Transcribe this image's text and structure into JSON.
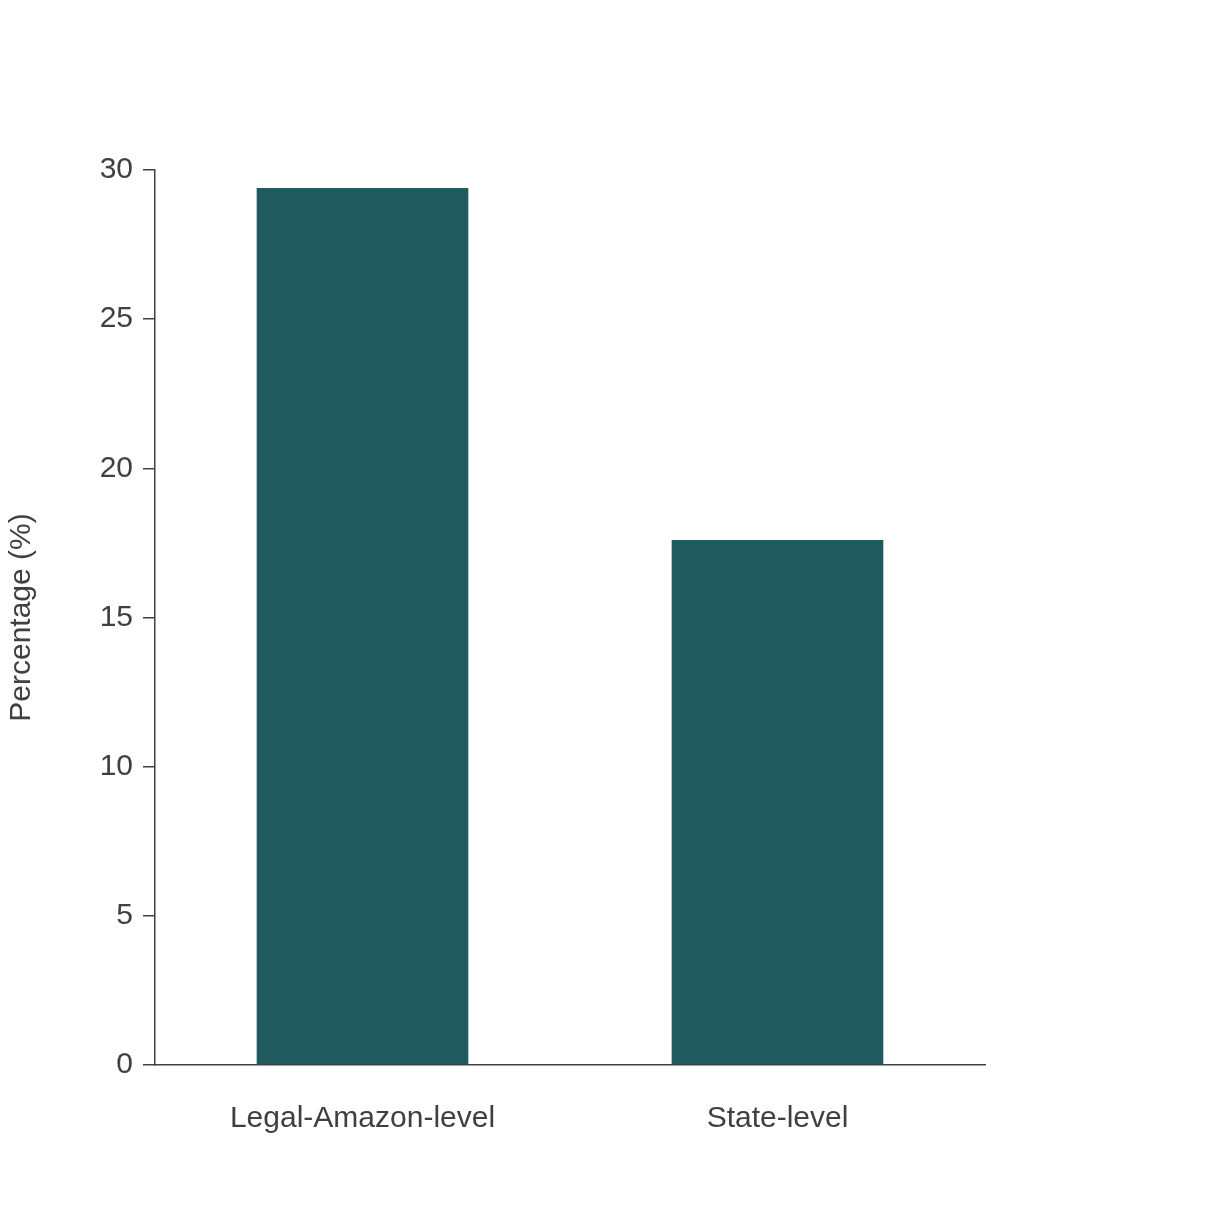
{
  "chart_data": {
    "type": "bar",
    "ylabel": "Percentage (%)",
    "categories": [
      "Legal-Amazon-level",
      "State-level"
    ],
    "values": [
      29.4,
      17.6
    ],
    "color": "#1f5a5f",
    "ylim": [
      0,
      30
    ],
    "yticks": [
      0,
      5,
      10,
      15,
      20,
      25,
      30
    ],
    "grid": false,
    "legend": false
  }
}
